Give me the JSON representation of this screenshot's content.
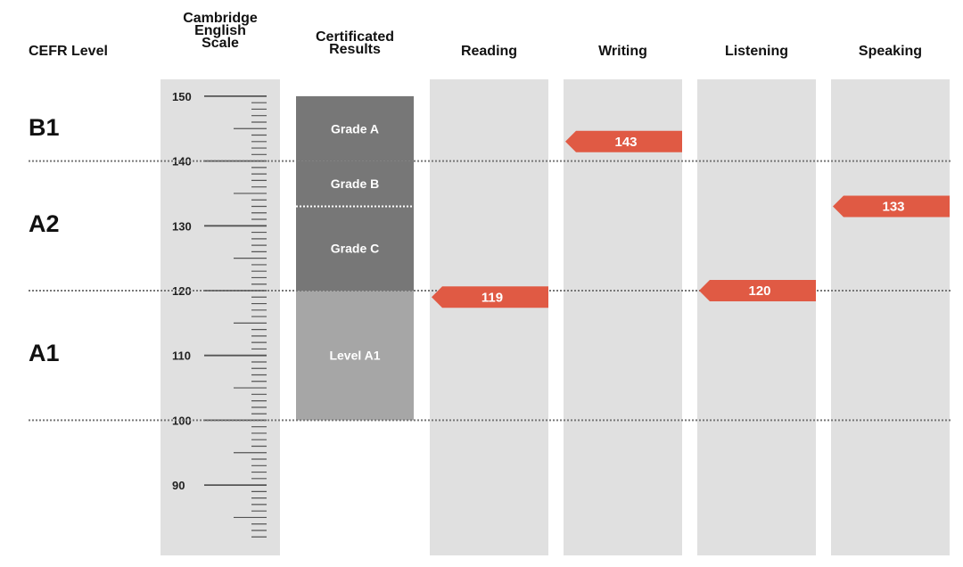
{
  "headers": {
    "cefr": "CEFR Level",
    "scale": [
      "Cambridge",
      "English",
      "Scale"
    ],
    "certificated": [
      "Certificated",
      "Results"
    ],
    "reading": "Reading",
    "writing": "Writing",
    "listening": "Listening",
    "speaking": "Speaking"
  },
  "chart_data": {
    "type": "bar",
    "scale": {
      "min": 82,
      "max": 150,
      "labeled_ticks": [
        150,
        140,
        130,
        120,
        110,
        100,
        90
      ]
    },
    "cefr_levels": [
      {
        "label": "B1",
        "from": 140,
        "to": 150
      },
      {
        "label": "A2",
        "from": 120,
        "to": 140
      },
      {
        "label": "A1",
        "from": 100,
        "to": 120
      }
    ],
    "boundaries": [
      140,
      120,
      100
    ],
    "certificated_results": [
      {
        "label": "Grade A",
        "from": 140,
        "to": 150,
        "color": "#777777"
      },
      {
        "label": "Grade B",
        "from": 133,
        "to": 140,
        "color": "#777777"
      },
      {
        "label": "Grade C",
        "from": 120,
        "to": 133,
        "color": "#777777"
      },
      {
        "label": "Level A1",
        "from": 100,
        "to": 120,
        "color": "#a6a6a6"
      }
    ],
    "skills": [
      {
        "name": "Reading",
        "value": 119
      },
      {
        "name": "Writing",
        "value": 143
      },
      {
        "name": "Listening",
        "value": 120
      },
      {
        "name": "Speaking",
        "value": 133
      }
    ],
    "marker_color": "#e05a44"
  }
}
